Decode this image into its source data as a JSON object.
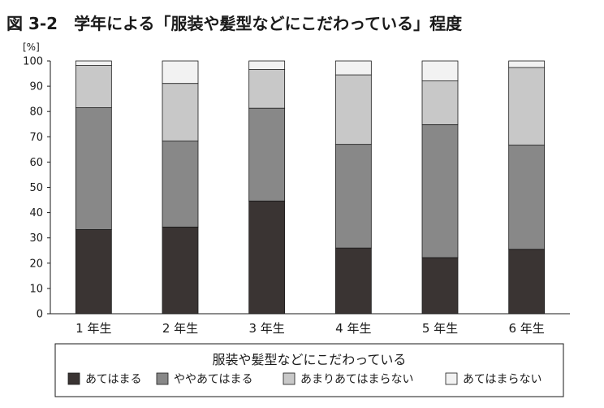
{
  "title": "図 3-2　学年による「服装や髪型などにこだわっている」程度",
  "legend_title": "服装や髪型などにこだわっている",
  "chart_data": {
    "type": "bar",
    "stacked": true,
    "title": "図 3-2　学年による「服装や髪型などにこだわっている」程度",
    "ylabel": "[%]",
    "ylim": [
      0,
      100
    ],
    "yticks": [
      0,
      10,
      20,
      30,
      40,
      50,
      60,
      70,
      80,
      90,
      100
    ],
    "categories": [
      "1 年生",
      "2 年生",
      "3 年生",
      "4 年生",
      "5 年生",
      "6 年生"
    ],
    "series": [
      {
        "name": "あてはまる",
        "color": "#3a3433",
        "values": [
          33.3,
          34.3,
          44.6,
          26.0,
          22.2,
          25.5
        ]
      },
      {
        "name": "ややあてはまる",
        "color": "#888888",
        "values": [
          48.2,
          34.0,
          36.7,
          41.0,
          52.6,
          41.2
        ]
      },
      {
        "name": "あまりあてはまらない",
        "color": "#c8c8c8",
        "values": [
          16.7,
          22.8,
          15.3,
          27.5,
          17.3,
          30.7
        ]
      },
      {
        "name": "あてはまらない",
        "color": "#f2f2f2",
        "values": [
          1.8,
          8.9,
          3.4,
          5.5,
          7.9,
          2.6
        ]
      }
    ],
    "legend_position": "bottom",
    "grid": false
  }
}
